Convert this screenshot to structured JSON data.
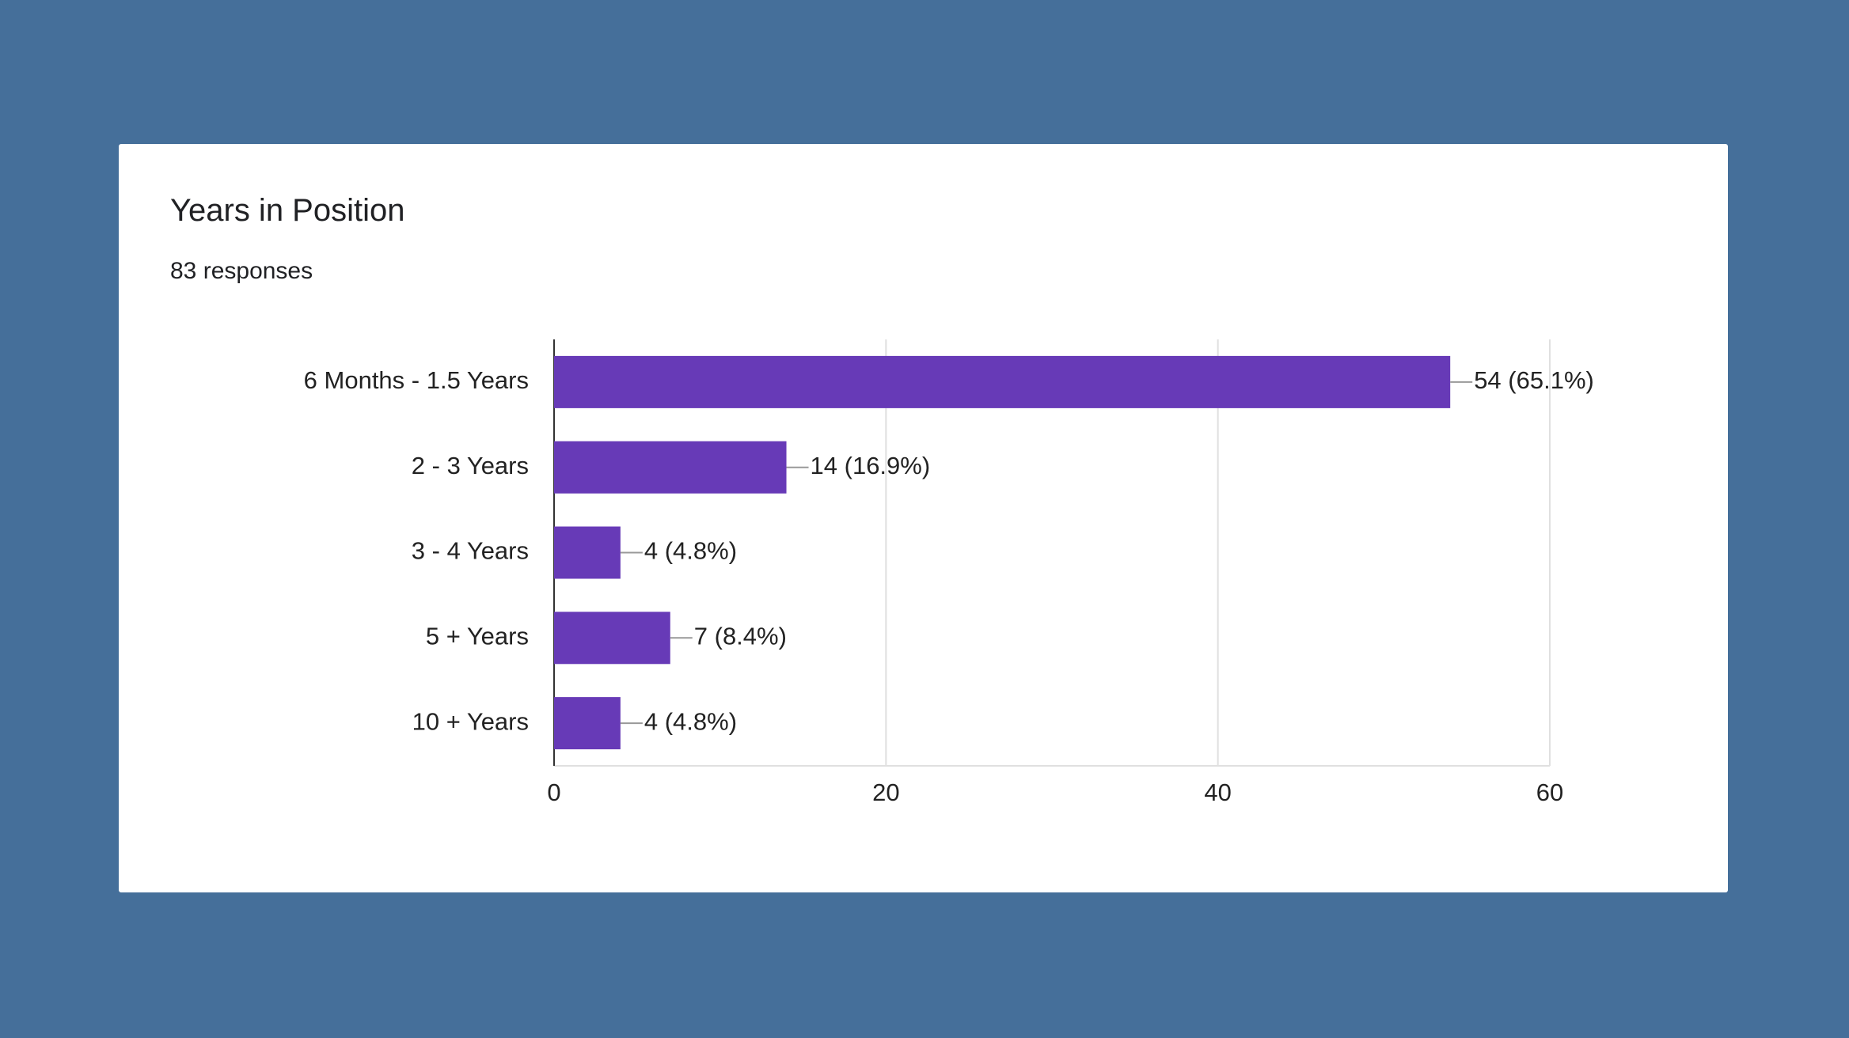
{
  "chart_data": {
    "type": "bar",
    "orientation": "horizontal",
    "title": "Years in Position",
    "subtitle": "83 responses",
    "categories": [
      "6 Months - 1.5 Years",
      "2 - 3 Years",
      "3 - 4 Years",
      "5 + Years",
      "10 + Years"
    ],
    "values": [
      54,
      14,
      4,
      7,
      4
    ],
    "value_labels": [
      "54 (65.1%)",
      "14 (16.9%)",
      "4 (4.8%)",
      "7 (8.4%)",
      "4 (4.8%)"
    ],
    "color": "#673ab7",
    "xlim": [
      0,
      60
    ],
    "xticks": [
      0,
      20,
      40,
      60
    ],
    "grid": true
  }
}
